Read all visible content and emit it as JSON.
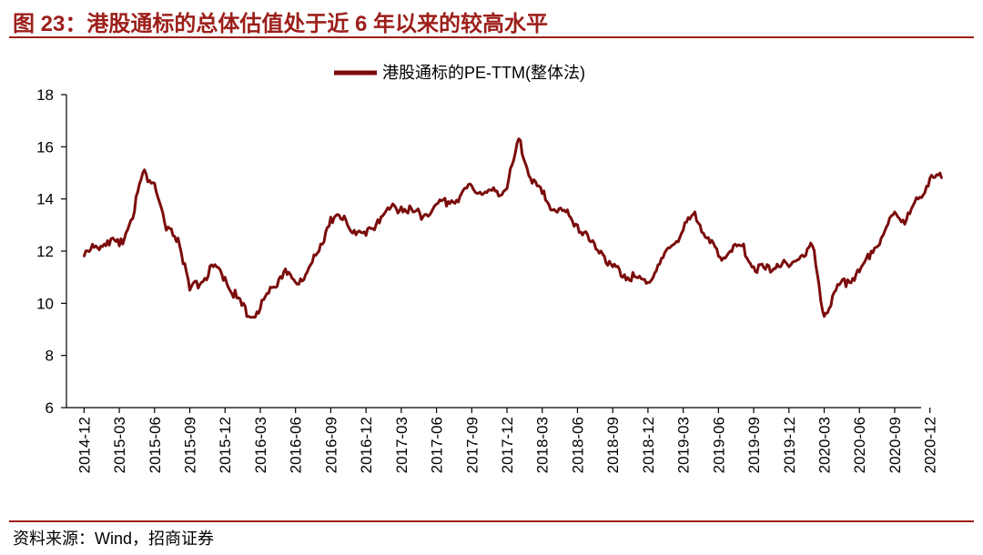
{
  "figure": {
    "title": "图 23：港股通标的总体估值处于近 6 年以来的较高水平",
    "source": "资料来源：Wind，招商证券"
  },
  "colors": {
    "accent": "#9c1f1a",
    "series": "#7b0c0c"
  },
  "chart_data": {
    "type": "line",
    "xlabel": "",
    "ylabel": "",
    "ylim": [
      6,
      18
    ],
    "yticks": [
      6,
      8,
      10,
      12,
      14,
      16,
      18
    ],
    "xticks": [
      "2014-12",
      "2015-03",
      "2015-06",
      "2015-09",
      "2015-12",
      "2016-03",
      "2016-06",
      "2016-09",
      "2016-12",
      "2017-03",
      "2017-06",
      "2017-09",
      "2017-12",
      "2018-03",
      "2018-06",
      "2018-09",
      "2018-12",
      "2019-03",
      "2019-06",
      "2019-09",
      "2019-12",
      "2020-03",
      "2020-06",
      "2020-09",
      "2020-12"
    ],
    "legend_position": "top-center",
    "grid": false,
    "series": [
      {
        "name": "港股通标的PE-TTM(整体法)",
        "x": [
          "2014-12",
          "2015-01",
          "2015-02",
          "2015-03",
          "2015-04",
          "2015-05",
          "2015-06",
          "2015-07",
          "2015-08",
          "2015-09",
          "2015-10",
          "2015-11",
          "2015-12",
          "2016-01",
          "2016-02",
          "2016-03",
          "2016-04",
          "2016-05",
          "2016-06",
          "2016-07",
          "2016-08",
          "2016-09",
          "2016-10",
          "2016-11",
          "2016-12",
          "2017-01",
          "2017-02",
          "2017-03",
          "2017-04",
          "2017-05",
          "2017-06",
          "2017-07",
          "2017-08",
          "2017-09",
          "2017-10",
          "2017-11",
          "2017-12",
          "2018-01",
          "2018-02",
          "2018-03",
          "2018-04",
          "2018-05",
          "2018-06",
          "2018-07",
          "2018-08",
          "2018-09",
          "2018-10",
          "2018-11",
          "2018-12",
          "2019-01",
          "2019-02",
          "2019-03",
          "2019-04",
          "2019-05",
          "2019-06",
          "2019-07",
          "2019-08",
          "2019-09",
          "2019-10",
          "2019-11",
          "2019-12",
          "2020-01",
          "2020-02",
          "2020-03",
          "2020-04",
          "2020-05",
          "2020-06",
          "2020-07",
          "2020-08",
          "2020-09",
          "2020-10",
          "2020-11",
          "2020-12",
          "2021-01"
        ],
        "values": [
          11.8,
          12.2,
          12.4,
          12.2,
          13.2,
          15.0,
          14.6,
          12.8,
          12.5,
          10.5,
          10.8,
          11.4,
          11.0,
          10.2,
          9.5,
          9.8,
          10.6,
          11.2,
          10.8,
          11.2,
          12.0,
          13.3,
          13.2,
          12.8,
          12.6,
          13.2,
          13.6,
          13.7,
          13.5,
          13.4,
          13.8,
          13.9,
          14.1,
          14.5,
          14.2,
          14.3,
          14.4,
          16.3,
          14.8,
          14.2,
          13.6,
          13.5,
          13.0,
          12.4,
          12.0,
          11.4,
          11.1,
          11.0,
          10.8,
          11.5,
          12.2,
          12.8,
          13.5,
          12.5,
          11.8,
          12.0,
          12.2,
          11.4,
          11.3,
          11.5,
          11.4,
          11.8,
          12.2,
          9.5,
          10.5,
          10.9,
          11.2,
          12.0,
          12.6,
          13.5,
          13.2,
          14.0,
          14.8,
          14.8
        ]
      }
    ]
  }
}
